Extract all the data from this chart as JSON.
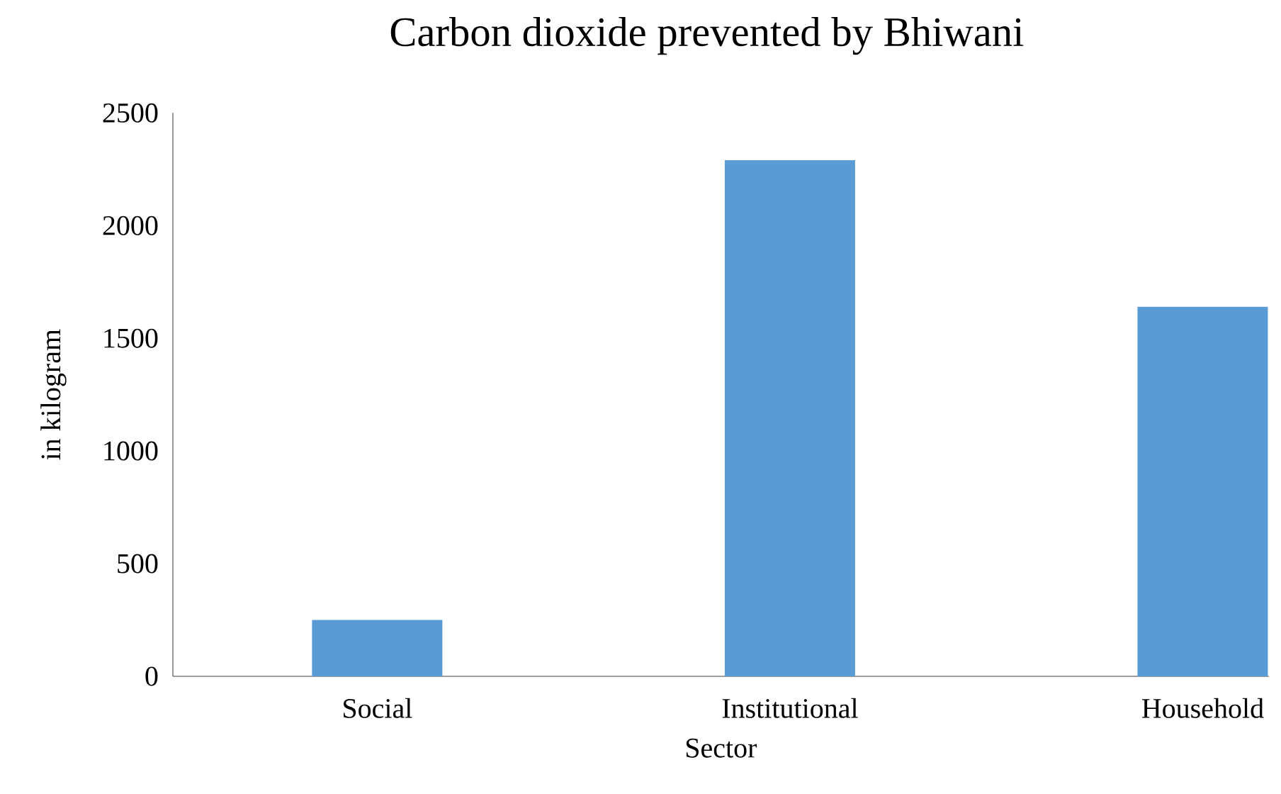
{
  "chart_data": {
    "type": "bar",
    "title": "Carbon dioxide prevented by Bhiwani",
    "xlabel": "Sector",
    "ylabel": "in kilogram",
    "categories": [
      "Social",
      "Institutional",
      "Household"
    ],
    "values": [
      250,
      2290,
      1640
    ],
    "color": "#5b9bd5",
    "ylim": [
      0,
      2500
    ],
    "yticks": [
      0,
      500,
      1000,
      1500,
      2000,
      2500
    ],
    "grid": false
  }
}
